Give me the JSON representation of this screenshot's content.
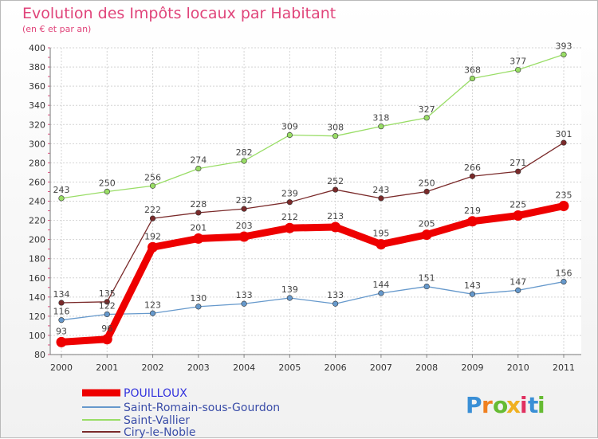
{
  "chart_data": {
    "type": "line",
    "title": "Evolution des Impôts locaux par Habitant",
    "subtitle": "(en € et par an)",
    "xlabel": "",
    "ylabel": "",
    "categories": [
      "2000",
      "2001",
      "2002",
      "2003",
      "2004",
      "2005",
      "2006",
      "2007",
      "2008",
      "2009",
      "2010",
      "2011"
    ],
    "ylim": [
      80,
      400
    ],
    "yticks": [
      80,
      100,
      120,
      140,
      160,
      180,
      200,
      220,
      240,
      260,
      280,
      300,
      320,
      340,
      360,
      380,
      400
    ],
    "grid": true,
    "legend_position": "bottom-left",
    "series": [
      {
        "name": "POUILLOUX",
        "color": "#ee0000",
        "values": [
          93,
          96,
          192,
          201,
          203,
          212,
          213,
          195,
          205,
          219,
          225,
          235
        ]
      },
      {
        "name": "Saint-Romain-sous-Gourdon",
        "color": "#6699cc",
        "values": [
          116,
          122,
          123,
          130,
          133,
          139,
          133,
          144,
          151,
          143,
          147,
          156
        ]
      },
      {
        "name": "Saint-Vallier",
        "color": "#99dd66",
        "values": [
          243,
          250,
          256,
          274,
          282,
          309,
          308,
          318,
          327,
          368,
          377,
          393
        ]
      },
      {
        "name": "Ciry-le-Noble",
        "color": "#7a2a2a",
        "values": [
          134,
          135,
          222,
          228,
          232,
          239,
          252,
          243,
          250,
          266,
          271,
          301
        ]
      }
    ]
  },
  "logo": {
    "letters": [
      "P",
      "r",
      "o",
      "x",
      "i",
      "t",
      "i"
    ],
    "colors": [
      "#3a8fd6",
      "#f08020",
      "#66bb33",
      "#f0b020",
      "#e03060",
      "#3a8fd6",
      "#66bb33"
    ]
  }
}
